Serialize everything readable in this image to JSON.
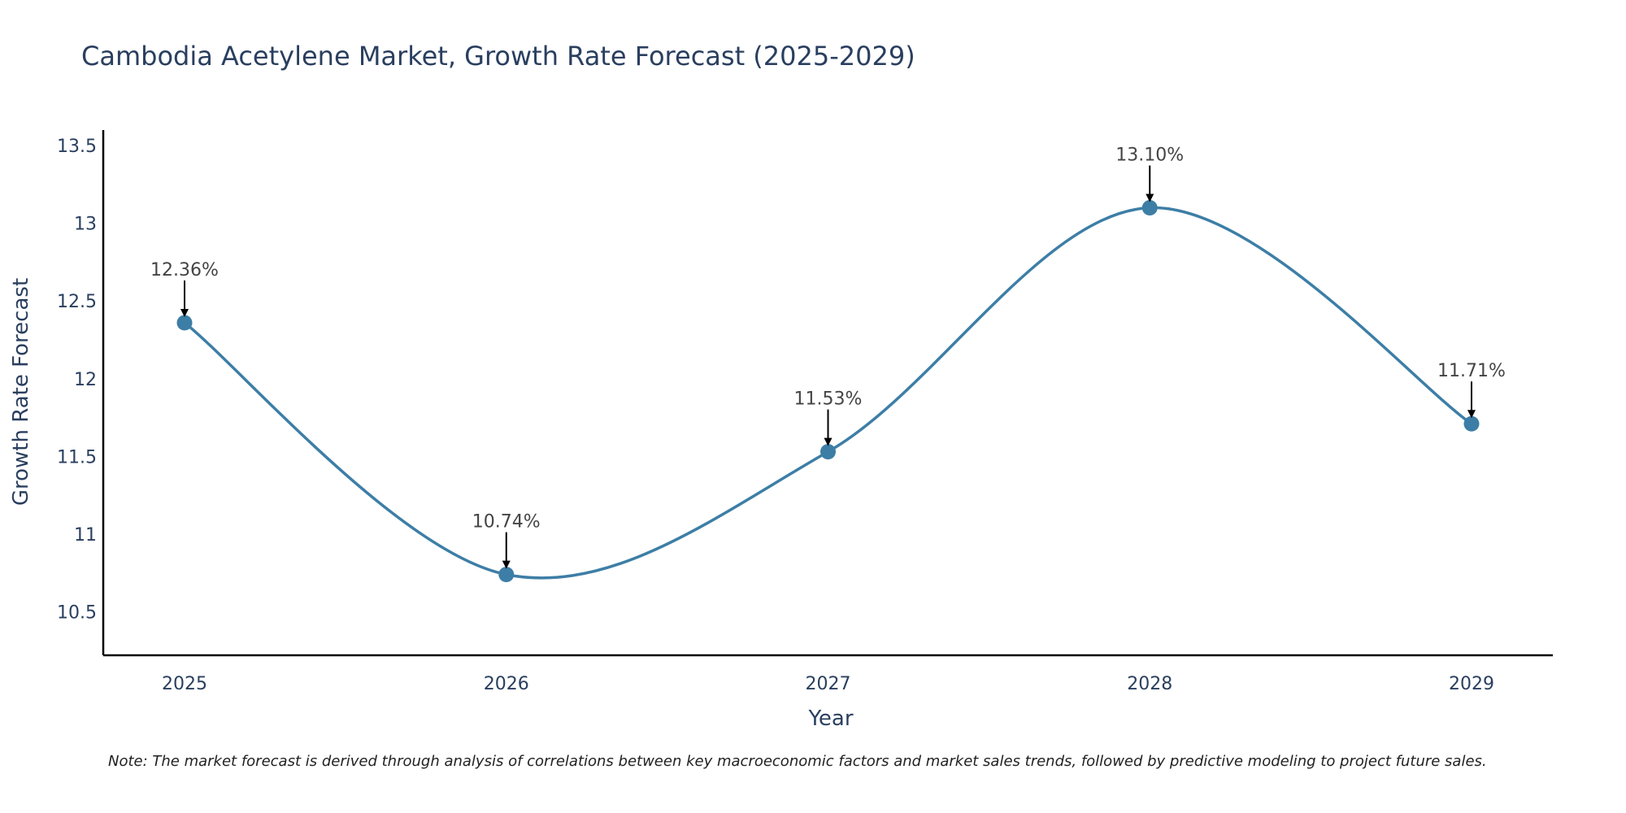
{
  "chart_data": {
    "type": "line",
    "title": "Cambodia Acetylene Market, Growth Rate Forecast (2025-2029)",
    "xlabel": "Year",
    "ylabel": "Growth Rate Forecast",
    "categories": [
      "2025",
      "2026",
      "2027",
      "2028",
      "2029"
    ],
    "values": [
      12.36,
      10.74,
      11.53,
      13.1,
      11.71
    ],
    "data_labels": [
      "12.36%",
      "10.74%",
      "11.53%",
      "13.10%",
      "11.71%"
    ],
    "ylim": [
      10.22,
      13.6
    ],
    "y_ticks": [
      10.5,
      11,
      11.5,
      12,
      12.5,
      13,
      13.5
    ],
    "y_tick_labels": [
      "10.5",
      "11",
      "11.5",
      "12",
      "12.5",
      "13",
      "13.5"
    ],
    "line_shape": "spline",
    "grid": false,
    "line_color": "#3d7ea6",
    "marker_color": "#3d7ea6",
    "note": "Note: The market forecast is derived through analysis of correlations between key macroeconomic factors and market sales trends, followed by predictive modeling to project future sales."
  }
}
